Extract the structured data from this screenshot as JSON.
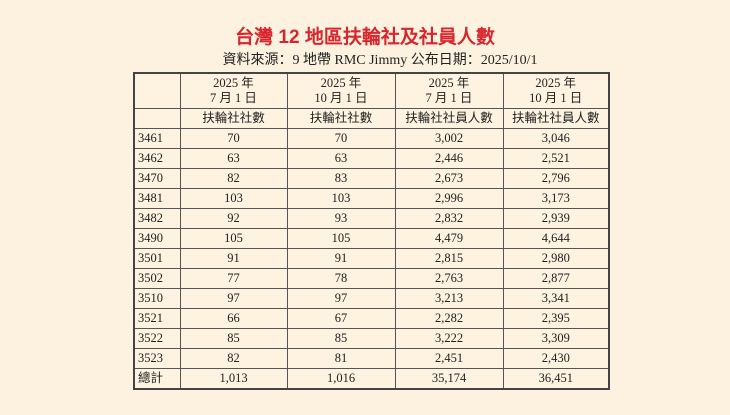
{
  "title": "台灣 12 地區扶輪社及社員人數",
  "subtitle": "資料來源：9 地帶 RMC Jimmy  公布日期：2025/10/1",
  "table": {
    "header_dates": [
      {
        "year": "2025 年",
        "date": "7 月 1 日"
      },
      {
        "year": "2025 年",
        "date": "10 月 1 日"
      },
      {
        "year": "2025 年",
        "date": "7 月 1 日"
      },
      {
        "year": "2025 年",
        "date": "10 月 1 日"
      }
    ],
    "header_metrics": [
      "扶輪社社數",
      "扶輪社社數",
      "扶輪社社員人數",
      "扶輪社社員人數"
    ],
    "rows": [
      [
        "3461",
        "70",
        "70",
        "3,002",
        "3,046"
      ],
      [
        "3462",
        "63",
        "63",
        "2,446",
        "2,521"
      ],
      [
        "3470",
        "82",
        "83",
        "2,673",
        "2,796"
      ],
      [
        "3481",
        "103",
        "103",
        "2,996",
        "3,173"
      ],
      [
        "3482",
        "92",
        "93",
        "2,832",
        "2,939"
      ],
      [
        "3490",
        "105",
        "105",
        "4,479",
        "4,644"
      ],
      [
        "3501",
        "91",
        "91",
        "2,815",
        "2,980"
      ],
      [
        "3502",
        "77",
        "78",
        "2,763",
        "2,877"
      ],
      [
        "3510",
        "97",
        "97",
        "3,213",
        "3,341"
      ],
      [
        "3521",
        "66",
        "67",
        "2,282",
        "2,395"
      ],
      [
        "3522",
        "85",
        "85",
        "3,222",
        "3,309"
      ],
      [
        "3523",
        "82",
        "81",
        "2,451",
        "2,430"
      ],
      [
        "總計",
        "1,013",
        "1,016",
        "35,174",
        "36,451"
      ]
    ]
  }
}
